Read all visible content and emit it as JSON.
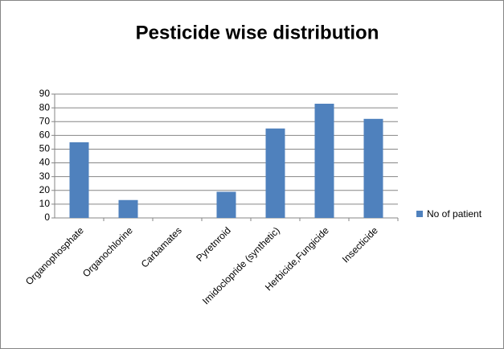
{
  "chart_data": {
    "type": "bar",
    "title": "Pesticide wise distribution",
    "categories": [
      "Organophosphate",
      "Organochlorine",
      "Carbamates",
      "Pyretnroid",
      "Imidoclopride (synthetic)",
      "Herbicide,Fungicide",
      "Insecticide"
    ],
    "series": [
      {
        "name": "No of patient",
        "color": "#4f81bd",
        "values": [
          55,
          13,
          0,
          19,
          65,
          83,
          72
        ]
      }
    ],
    "ylim": [
      0,
      90
    ],
    "yticks": [
      0,
      10,
      20,
      30,
      40,
      50,
      60,
      70,
      80,
      90
    ],
    "grid": true,
    "legend": "right"
  }
}
